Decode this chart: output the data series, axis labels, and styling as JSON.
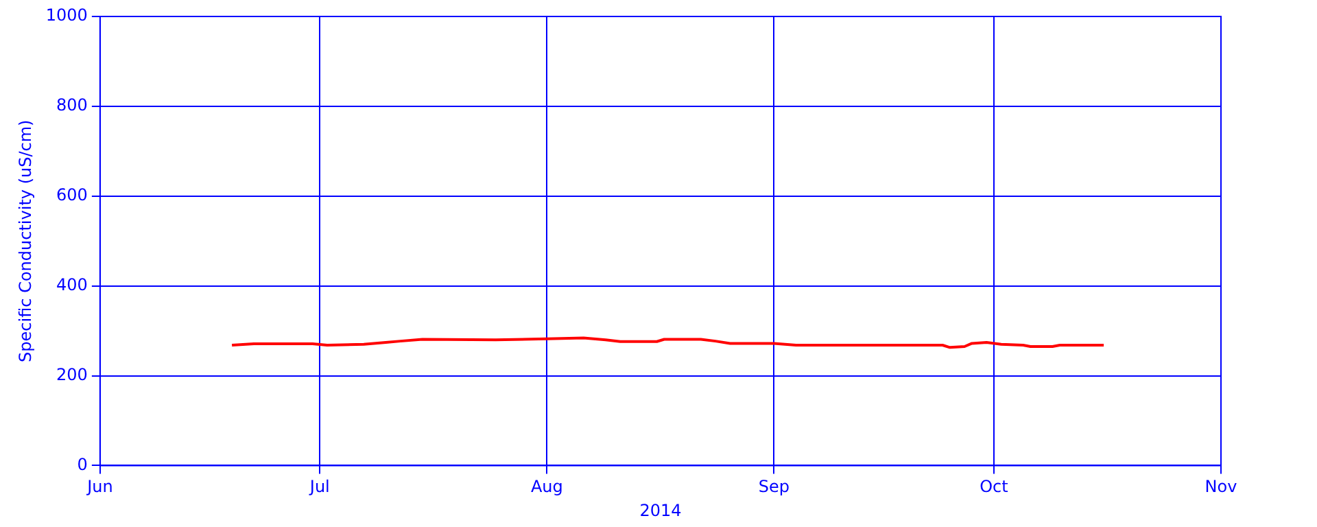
{
  "chart_data": {
    "type": "line",
    "xlabel": "2014",
    "ylabel": "Specific Conductivity (uS/cm)",
    "xlim": [
      "2014-06-01",
      "2014-11-01"
    ],
    "xticks": [
      {
        "value": "2014-06-01",
        "label": "Jun"
      },
      {
        "value": "2014-07-01",
        "label": "Jul"
      },
      {
        "value": "2014-08-01",
        "label": "Aug"
      },
      {
        "value": "2014-09-01",
        "label": "Sep"
      },
      {
        "value": "2014-10-01",
        "label": "Oct"
      },
      {
        "value": "2014-11-01",
        "label": "Nov"
      }
    ],
    "ylim": [
      0,
      1000
    ],
    "yticks": [
      0,
      200,
      400,
      600,
      800,
      1000
    ],
    "grid": true,
    "legend": false,
    "marker": "none",
    "line_style": "solid",
    "x": [
      "2014-06-19",
      "2014-06-22",
      "2014-06-30",
      "2014-07-02",
      "2014-07-07",
      "2014-07-10",
      "2014-07-12",
      "2014-07-15",
      "2014-07-25",
      "2014-08-01",
      "2014-08-06",
      "2014-08-09",
      "2014-08-11",
      "2014-08-16",
      "2014-08-17",
      "2014-08-22",
      "2014-08-24",
      "2014-08-26",
      "2014-09-01",
      "2014-09-04",
      "2014-09-20",
      "2014-09-24",
      "2014-09-25",
      "2014-09-27",
      "2014-09-28",
      "2014-09-30",
      "2014-10-02",
      "2014-10-05",
      "2014-10-06",
      "2014-10-09",
      "2014-10-10",
      "2014-10-16"
    ],
    "series": [
      {
        "color": "#ff0000",
        "values": [
          268,
          271,
          271,
          268,
          270,
          274,
          277,
          281,
          280,
          282,
          284,
          280,
          276,
          276,
          281,
          281,
          277,
          272,
          272,
          268,
          268,
          268,
          263,
          265,
          272,
          274,
          270,
          268,
          265,
          265,
          268,
          268
        ]
      }
    ]
  }
}
